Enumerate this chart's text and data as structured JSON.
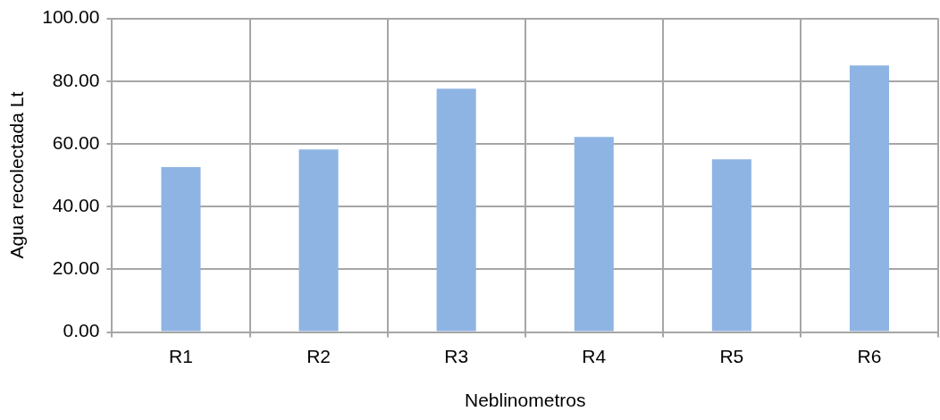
{
  "chart_data": {
    "type": "bar",
    "xlabel": "Neblinometros",
    "ylabel": "Agua recolectada Lt",
    "categories": [
      "R1",
      "R2",
      "R3",
      "R4",
      "R5",
      "R6"
    ],
    "values": [
      52.6,
      58.2,
      77.6,
      62.2,
      55.1,
      85.0
    ],
    "color": "#8eb4e3",
    "ylim": [
      0,
      100
    ],
    "yticks": [
      {
        "value": 0,
        "label": "0.00"
      },
      {
        "value": 20,
        "label": "20.00"
      },
      {
        "value": 40,
        "label": "40.00"
      },
      {
        "value": 60,
        "label": "60.00"
      },
      {
        "value": 80,
        "label": "80.00"
      },
      {
        "value": 100,
        "label": "100.00"
      }
    ],
    "grid": true,
    "legend": false
  }
}
